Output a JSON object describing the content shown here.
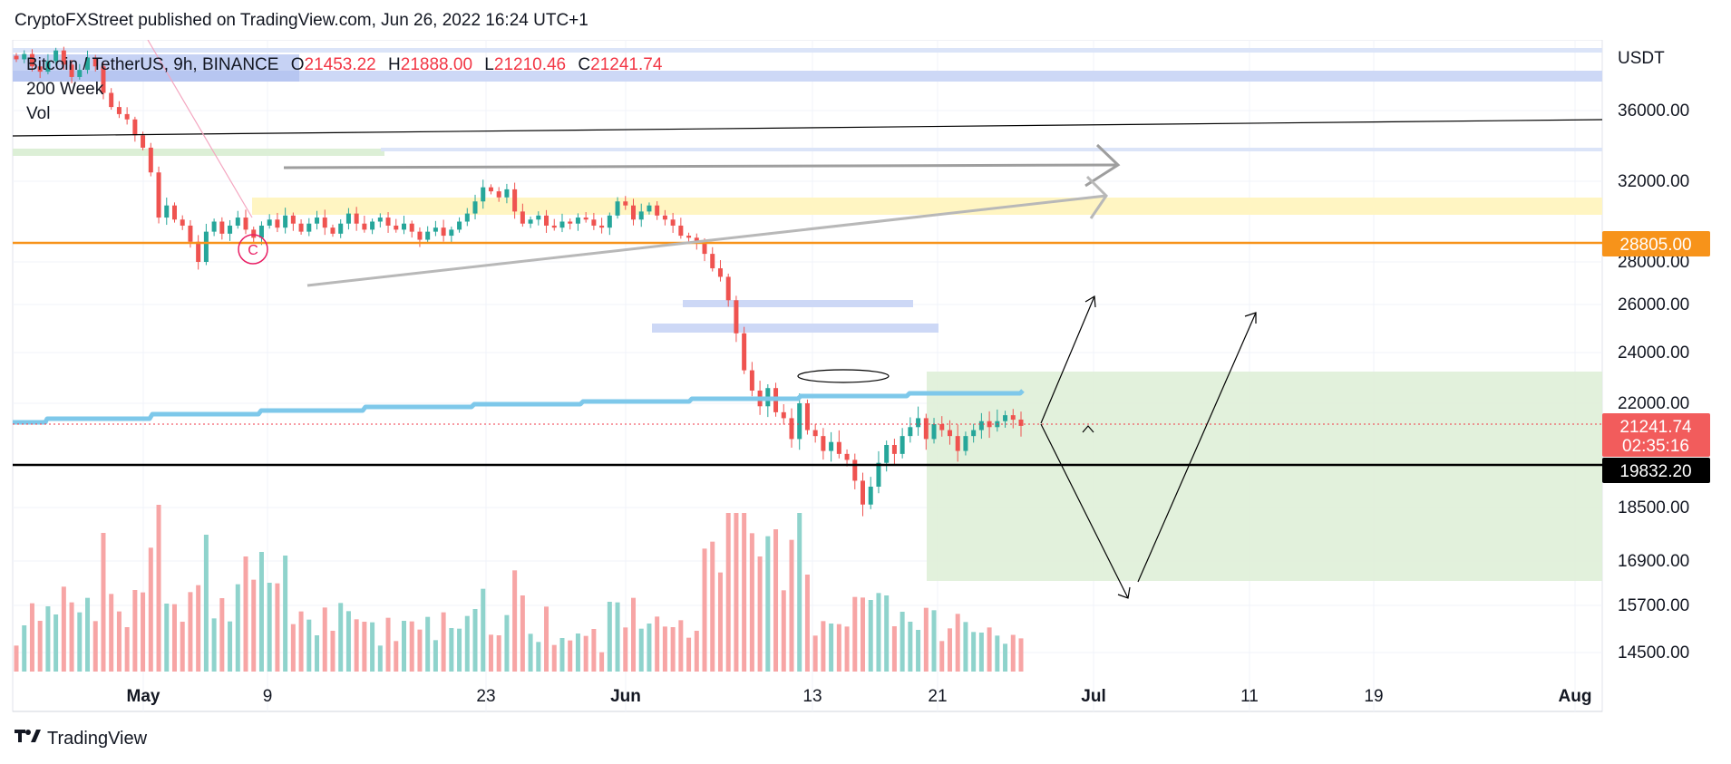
{
  "header": {
    "published_by": "CryptoFXStreet published on TradingView.com, Jun 26, 2022 16:24 UTC+1"
  },
  "legend": {
    "symbol": "Bitcoin / TetherUS, 9h, BINANCE",
    "open_label": "O",
    "open": "21453.22",
    "high_label": "H",
    "high": "21888.00",
    "low_label": "L",
    "low": "21210.46",
    "close_label": "C",
    "close": "21241.74",
    "indicator_1": "200 Week",
    "indicator_2": "Vol"
  },
  "price_axis": {
    "currency": "USDT",
    "ticks": [
      "36000.00",
      "32000.00",
      "28000.00",
      "26000.00",
      "24000.00",
      "22000.00",
      "18500.00",
      "16900.00",
      "15700.00",
      "14500.00"
    ]
  },
  "badges": {
    "level_orange": "28805.00",
    "last_price": "21241.74",
    "countdown": "02:35:16",
    "level_black": "19832.20"
  },
  "time_axis": {
    "labels": [
      "May",
      "9",
      "23",
      "Jun",
      "13",
      "21",
      "Jul",
      "11",
      "19",
      "Aug"
    ]
  },
  "annotations": {
    "wave_label": "C"
  },
  "colors": {
    "up": "#26a69a",
    "down": "#ef5350",
    "orange_level": "#f7931a",
    "ma_line": "#7ec8ea",
    "green_zone": "#dff0d8",
    "yellow_zone": "#fff5c2",
    "blue_zone": "#cdd8f6"
  },
  "footer": {
    "brand": "TradingView"
  },
  "chart_data": {
    "type": "candlestick",
    "symbol": "Bitcoin / TetherUS",
    "timeframe": "9h",
    "exchange": "BINANCE",
    "y_unit": "USDT",
    "ylim_approx": [
      14000,
      38500
    ],
    "closes_approx": [
      38900,
      39200,
      38500,
      38200,
      38800,
      39400,
      38600,
      37900,
      38300,
      39000,
      38500,
      37000,
      36200,
      35800,
      35500,
      34600,
      33900,
      32500,
      30200,
      30800,
      30100,
      29800,
      29000,
      28000,
      29500,
      30000,
      29400,
      29800,
      30200,
      29600,
      29200,
      29800,
      30100,
      29700,
      30300,
      29900,
      29500,
      29900,
      30200,
      29700,
      29400,
      29900,
      30400,
      29900,
      29600,
      30000,
      30200,
      29800,
      29600,
      29900,
      29500,
      29100,
      29500,
      29700,
      29300,
      29600,
      30000,
      30400,
      31000,
      31700,
      31500,
      31200,
      31600,
      30500,
      29900,
      30100,
      30300,
      29800,
      29700,
      30000,
      29900,
      30200,
      30100,
      29800,
      29700,
      30300,
      31000,
      30800,
      30100,
      30500,
      30800,
      30300,
      30100,
      29800,
      29300,
      29200,
      28900,
      28400,
      27700,
      27300,
      26200,
      24800,
      23300,
      22500,
      21900,
      22600,
      21700,
      21500,
      20800,
      22000,
      21100,
      20900,
      20400,
      20700,
      20300,
      20100,
      19400,
      18600,
      19200,
      20000,
      20600,
      20300,
      20900,
      21200,
      21500,
      20800,
      21300,
      21100,
      20900,
      20400,
      20900,
      21100,
      21400,
      21200,
      21400,
      21600,
      21450,
      21241.74
    ],
    "last": {
      "open": 21453.22,
      "high": 21888.0,
      "low": 21210.46,
      "close": 21241.74
    },
    "horizontal_levels": [
      {
        "price": 28805.0,
        "color": "orange"
      },
      {
        "price": 19832.2,
        "color": "black"
      }
    ],
    "indicators": [
      "200 Week",
      "Vol"
    ],
    "x_axis_labels": [
      "May",
      "9",
      "23",
      "Jun",
      "13",
      "21",
      "Jul",
      "11",
      "19",
      "Aug"
    ],
    "grid": true
  }
}
